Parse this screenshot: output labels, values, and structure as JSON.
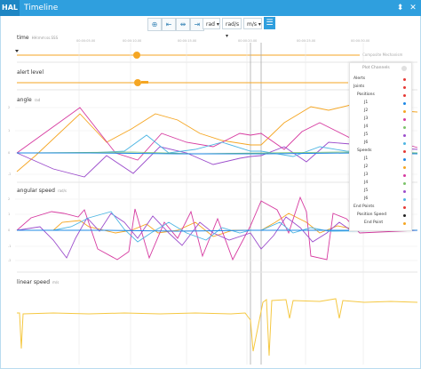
{
  "titlebar": {
    "app": "HAL",
    "title": "Timeline",
    "pin_icon": "pin-icon",
    "close_icon": "close-icon"
  },
  "toolbar": {
    "angle_unit": "rad",
    "speed_unit": "rad/s",
    "linear_unit": "m/s",
    "icons": [
      "zoom-in-icon",
      "shrink-icon",
      "expand-icon",
      "fit-icon",
      "menu-icon"
    ]
  },
  "time_axis": {
    "label": "time",
    "unit": "HH:mm:ss.SSS",
    "ticks": [
      "00:00:05.00",
      "00:00:10.00",
      "00:00:15.00",
      "00:00:20.00",
      "00:00:25.00",
      "00:00:30.00"
    ],
    "composite": "Composite Mechanism"
  },
  "plots": {
    "alert": {
      "label": "alert level"
    },
    "angle": {
      "label": "angle",
      "unit": "rad",
      "yticks": [
        "2",
        "1",
        "0",
        "-1",
        "-2"
      ]
    },
    "angular_speed": {
      "label": "angular speed",
      "unit": "rad/s",
      "yticks": [
        "2",
        "1",
        "0",
        "-1",
        "-2"
      ]
    },
    "linear_speed": {
      "label": "linear speed",
      "unit": "m/s"
    }
  },
  "legend": {
    "title": "Plot Channels",
    "rows": [
      {
        "label": "Alerts",
        "color": "#e53935"
      },
      {
        "label": "Joints",
        "color": "#e53935"
      },
      {
        "label": "Positions",
        "color": "#e53935"
      },
      {
        "label": "J1",
        "color": "#1e88e5"
      },
      {
        "label": "J2",
        "color": "#f5a623"
      },
      {
        "label": "J3",
        "color": "#d63aa0"
      },
      {
        "label": "J4",
        "color": "#7cc36a"
      },
      {
        "label": "J5",
        "color": "#9c4dcc"
      },
      {
        "label": "J6",
        "color": "#4fb6e3"
      },
      {
        "label": "Speeds",
        "color": "#e53935"
      },
      {
        "label": "J1",
        "color": "#1e88e5"
      },
      {
        "label": "J2",
        "color": "#f5a623"
      },
      {
        "label": "J3",
        "color": "#d63aa0"
      },
      {
        "label": "J4",
        "color": "#7cc36a"
      },
      {
        "label": "J5",
        "color": "#9c4dcc"
      },
      {
        "label": "J6",
        "color": "#4fb6e3"
      },
      {
        "label": "End Points",
        "color": "#e53935"
      },
      {
        "label": "Position Speed",
        "color": "#222222"
      },
      {
        "label": "End Point",
        "color": "#f5a623"
      }
    ]
  },
  "colors": {
    "accent": "#2f9fde",
    "orange": "#f5a623",
    "magenta": "#d63aa0",
    "blue": "#4fb6e3",
    "purple": "#9c4dcc"
  }
}
